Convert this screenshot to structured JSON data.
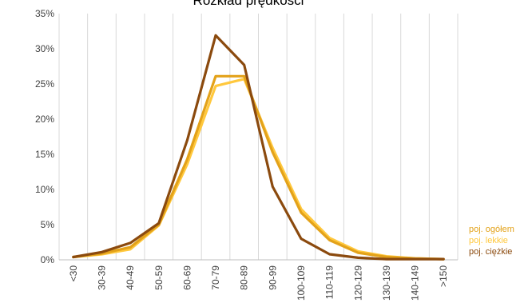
{
  "chart_data": {
    "type": "line",
    "title": "Rozkład prędkości",
    "xlabel": "",
    "ylabel": "",
    "categories": [
      "<30",
      "30-39",
      "40-49",
      "50-59",
      "60-69",
      "70-79",
      "80-89",
      "90-99",
      "100-109",
      "110-119",
      "120-129",
      "130-139",
      "140-149",
      ">150"
    ],
    "ylim": [
      0,
      35
    ],
    "yticks": [
      0,
      5,
      10,
      15,
      20,
      25,
      30,
      35
    ],
    "ytick_labels": [
      "0%",
      "5%",
      "10%",
      "15%",
      "20%",
      "25%",
      "30%",
      "35%"
    ],
    "grid": "vertical",
    "legend_position": "bottom-right",
    "series": [
      {
        "name": "poj. ogółem",
        "color": "#E3A21A",
        "values": [
          0.4,
          0.9,
          1.8,
          5.0,
          14.3,
          26.1,
          26.1,
          15.3,
          6.7,
          2.8,
          1.0,
          0.4,
          0.2,
          0.1
        ]
      },
      {
        "name": "poj. lekkie",
        "color": "#FFC83D",
        "values": [
          0.4,
          0.8,
          1.5,
          4.9,
          13.6,
          24.7,
          25.7,
          15.9,
          7.2,
          3.1,
          1.2,
          0.5,
          0.2,
          0.1
        ]
      },
      {
        "name": "poj. ciężkie",
        "color": "#8B4A0E",
        "values": [
          0.4,
          1.1,
          2.4,
          5.2,
          17.0,
          31.9,
          27.7,
          10.4,
          3.0,
          0.8,
          0.3,
          0.1,
          0.1,
          0.1
        ]
      }
    ]
  }
}
